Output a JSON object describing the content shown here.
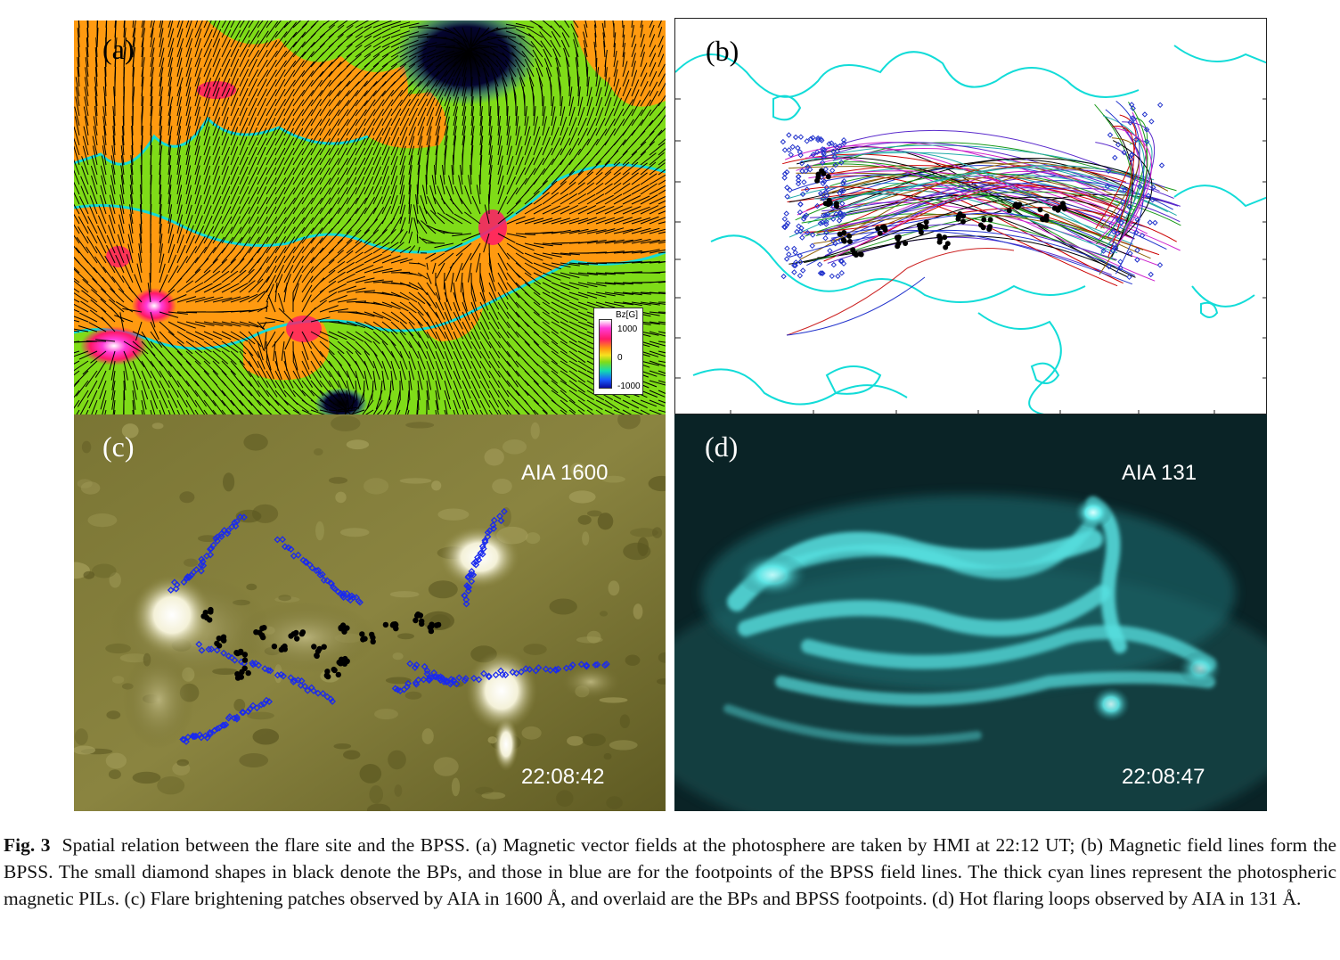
{
  "panels": {
    "a": {
      "label": "(a)",
      "legend": {
        "title": "Bz[G]",
        "ticks": [
          "1000",
          "0",
          "-1000"
        ]
      },
      "colors": {
        "positive_strong": "#ff1868",
        "positive_weak": "#ff9a10",
        "near_zero": "#7fdc18",
        "negative": "#0a0aa0",
        "pil": "#12dcd8"
      }
    },
    "b": {
      "label": "(b)"
    },
    "c": {
      "label": "(c)",
      "instrument": "AIA 1600",
      "time": "22:08:42"
    },
    "d": {
      "label": "(d)",
      "instrument": "AIA 131",
      "time": "22:08:47"
    }
  },
  "caption": {
    "fig": "Fig. 3",
    "text": "Spatial relation between the flare site and the BPSS. (a) Magnetic vector fields at the photosphere are taken by HMI at 22:12 UT; (b) Magnetic field lines form the BPSS. The small diamond shapes in black denote the BPs, and those in blue are for the footpoints of the BPSS field lines. The thick cyan lines represent the photospheric magnetic PILs. (c) Flare brightening patches observed by AIA in 1600 Å, and overlaid are the BPs and BPSS footpoints. (d) Hot flaring loops observed by AIA in 131 Å."
  }
}
